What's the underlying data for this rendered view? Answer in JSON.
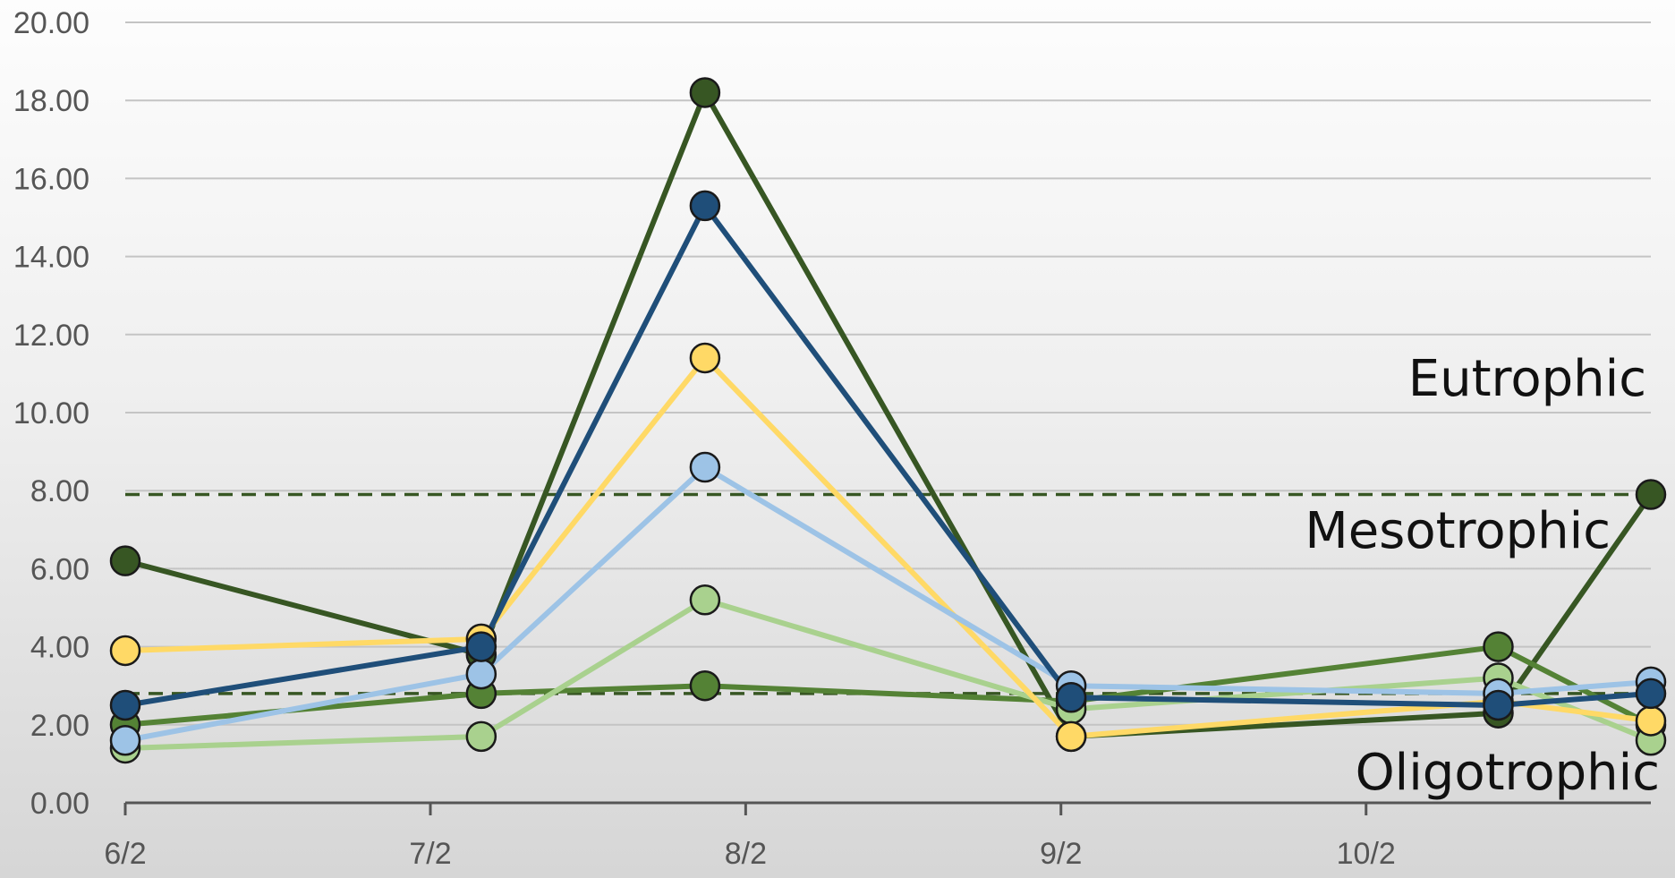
{
  "chart_data": {
    "type": "line",
    "x_labels": [
      "6/2",
      "7/2",
      "8/2",
      "9/2",
      "10/2"
    ],
    "x_ticks": [
      "2023-06-02",
      "2023-07-02",
      "2023-08-02",
      "2023-09-02",
      "2023-10-02"
    ],
    "x_range": [
      "2023-06-02",
      "2023-10-30"
    ],
    "y_ticks": [
      "0.00",
      "2.00",
      "4.00",
      "6.00",
      "8.00",
      "10.00",
      "12.00",
      "14.00",
      "16.00",
      "18.00",
      "20.00"
    ],
    "ylim": [
      0,
      20
    ],
    "grid": true,
    "x": [
      "2023-06-02",
      "2023-07-07",
      "2023-07-29",
      "2023-09-03",
      "2023-10-15",
      "2023-10-30"
    ],
    "series": [
      {
        "color": "#375623",
        "values": [
          6.2,
          3.8,
          18.2,
          1.7,
          2.3,
          7.9
        ]
      },
      {
        "color": "#548235",
        "values": [
          2.0,
          2.8,
          3.0,
          2.6,
          4.0,
          2.0
        ]
      },
      {
        "color": "#a9d18e",
        "values": [
          1.4,
          1.7,
          5.2,
          2.4,
          3.2,
          1.6
        ]
      },
      {
        "color": "#ffd966",
        "values": [
          3.9,
          4.2,
          11.4,
          1.7,
          2.6,
          2.1
        ]
      },
      {
        "color": "#9dc3e6",
        "values": [
          1.6,
          3.3,
          8.6,
          3.0,
          2.8,
          3.1
        ]
      },
      {
        "color": "#1f4e79",
        "values": [
          2.5,
          4.0,
          15.3,
          2.7,
          2.5,
          2.8
        ]
      }
    ],
    "thresholds": [
      {
        "value": 7.9,
        "color": "#375623",
        "style": "dashed"
      },
      {
        "value": 2.8,
        "color": "#375623",
        "style": "dashed"
      }
    ],
    "zone_labels": [
      "Eutrophic",
      "Mesotrophic",
      "Oligotrophic"
    ]
  }
}
